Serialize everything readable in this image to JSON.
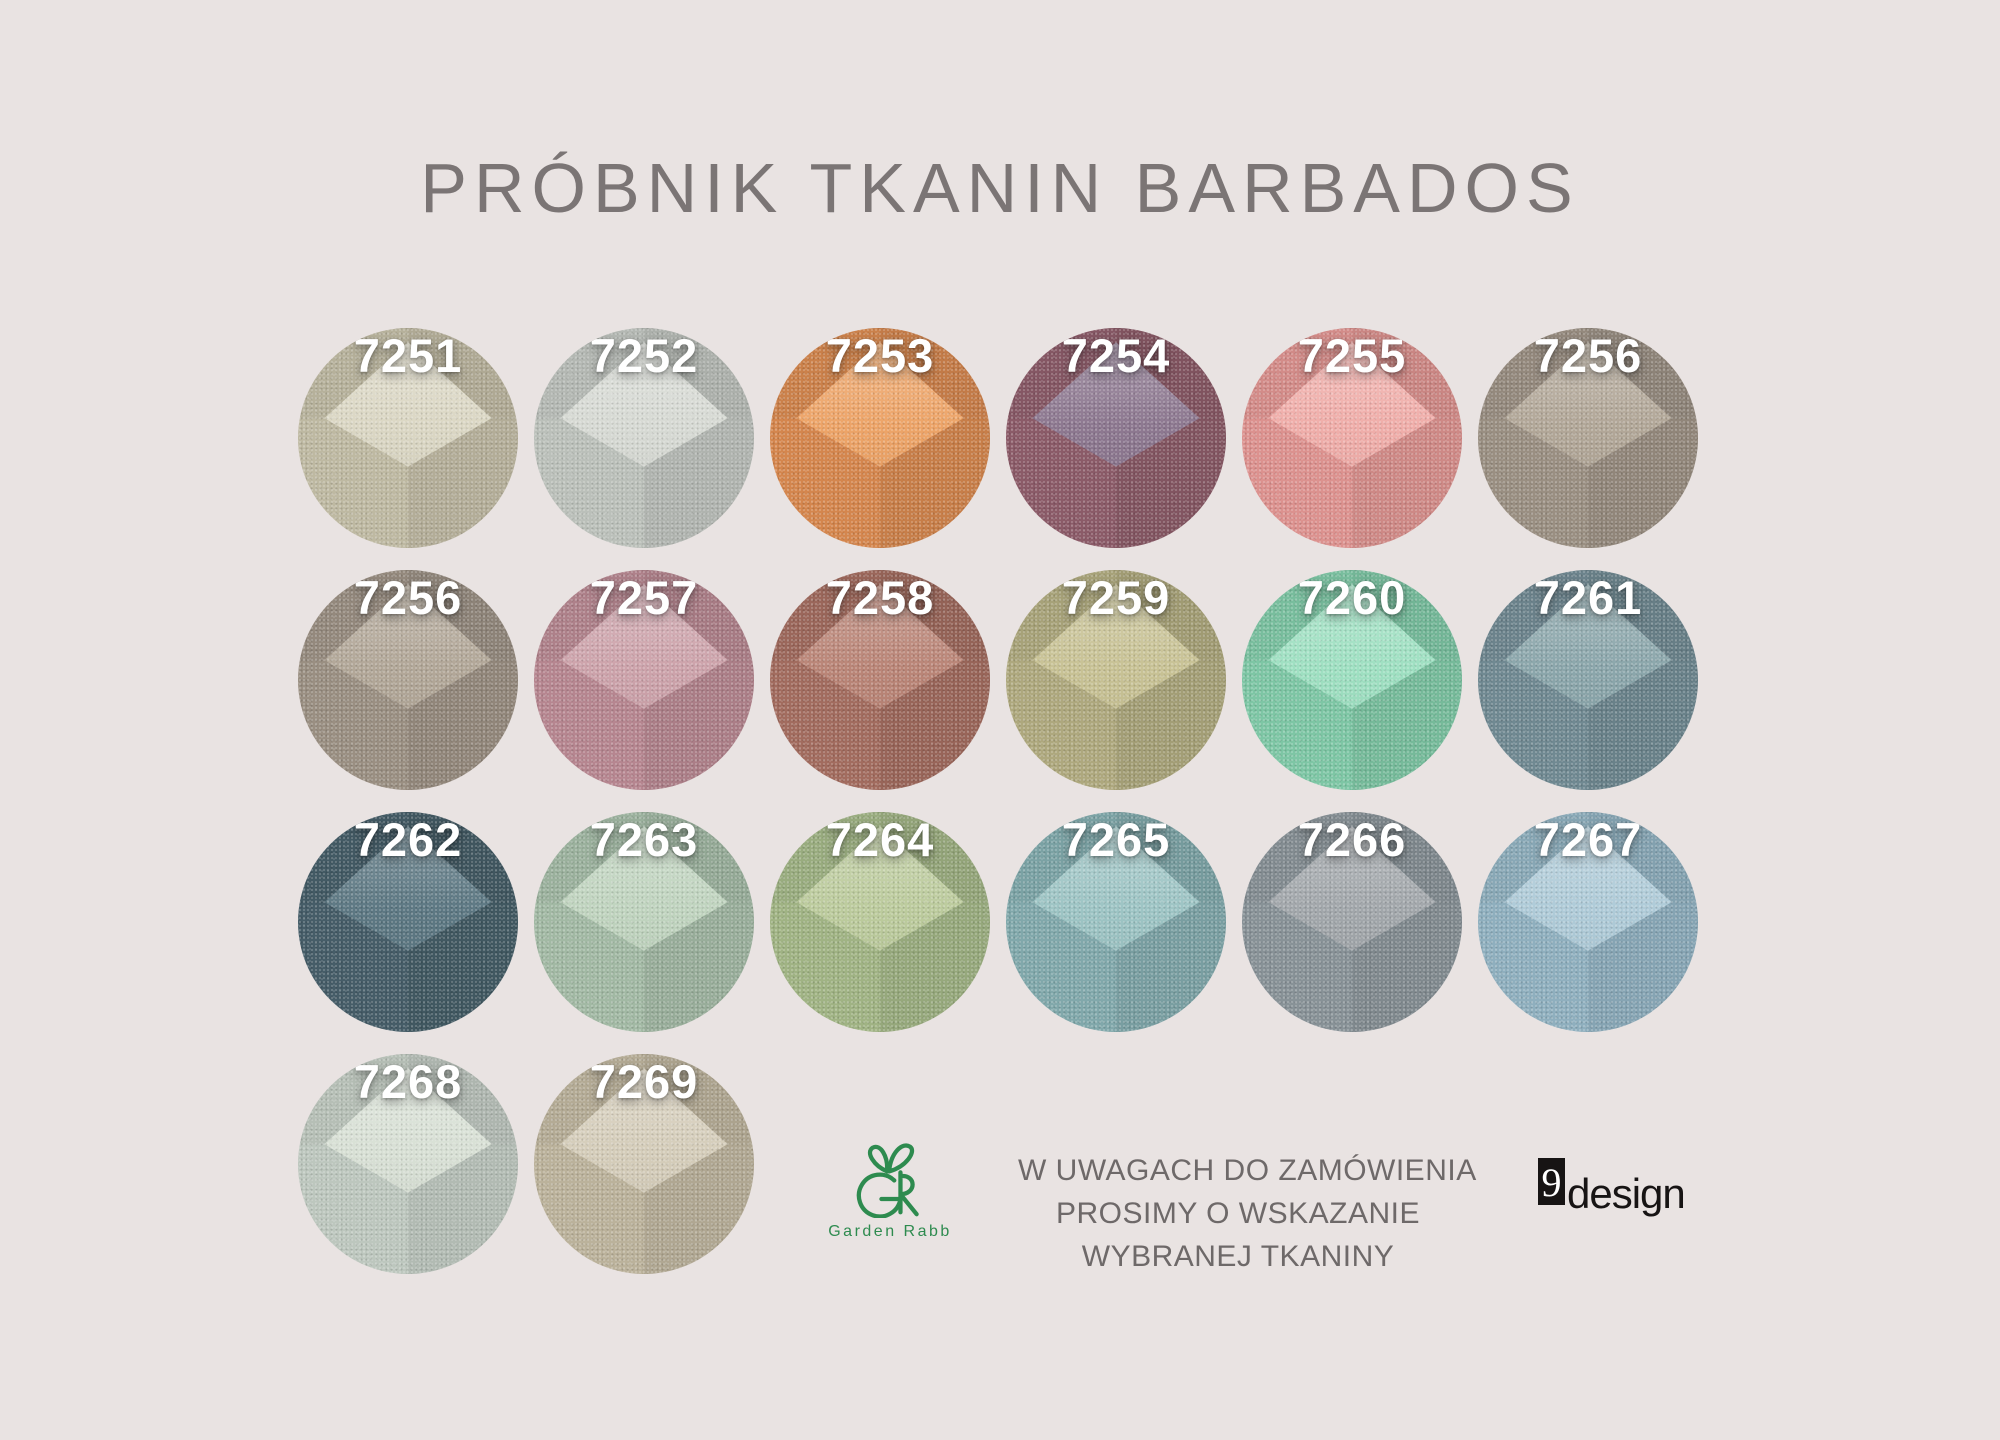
{
  "title": "PRÓBNIK TKANIN BARBADOS",
  "colors": {
    "background": "#e9e3e2",
    "title": "#7b7575",
    "note_text": "#6e6969",
    "garden_green": "#2e8b4f",
    "nine_black": "#171414",
    "swatch_label": "#ffffff"
  },
  "swatch_rows": [
    [
      {
        "label": "7251",
        "top": "#dbd7c4",
        "side": "#c9c3ab"
      },
      {
        "label": "7252",
        "top": "#d7dad4",
        "side": "#c6cbc5"
      },
      {
        "label": "7253",
        "top": "#eda468",
        "side": "#e08e53"
      },
      {
        "label": "7254",
        "top": "#8d7890",
        "side": "#93606e"
      },
      {
        "label": "7255",
        "top": "#f0aeaa",
        "side": "#e89a97"
      },
      {
        "label": "7256",
        "top": "#b2a798",
        "side": "#a3978a"
      }
    ],
    [
      {
        "label": "7256",
        "top": "#b2a798",
        "side": "#a3978a"
      },
      {
        "label": "7257",
        "top": "#cda3ab",
        "side": "#c08e98"
      },
      {
        "label": "7258",
        "top": "#ba8577",
        "side": "#ab7265"
      },
      {
        "label": "7259",
        "top": "#c8c295",
        "side": "#b8b285"
      },
      {
        "label": "7260",
        "top": "#9fe0c2",
        "side": "#85d1ae"
      },
      {
        "label": "7261",
        "top": "#8ba6ab",
        "side": "#77919a"
      }
    ],
    [
      {
        "label": "7262",
        "top": "#5d7883",
        "side": "#4a636e"
      },
      {
        "label": "7263",
        "top": "#c0d4bf",
        "side": "#abc3ad"
      },
      {
        "label": "7264",
        "top": "#bccb9d",
        "side": "#a9bd8c"
      },
      {
        "label": "7265",
        "top": "#9dc4c4",
        "side": "#88b2b5"
      },
      {
        "label": "7266",
        "top": "#a2a7ab",
        "side": "#909aa0"
      },
      {
        "label": "7267",
        "top": "#afcbd8",
        "side": "#97b9c9"
      }
    ],
    [
      {
        "label": "7268",
        "top": "#d8e0d5",
        "side": "#c8d2c9"
      },
      {
        "label": "7269",
        "top": "#d5cdba",
        "side": "#c6bca4"
      }
    ]
  ],
  "footer": {
    "garden_rabb": {
      "name": "Garden Rabb"
    },
    "note_lines": [
      "W UWAGACH DO ZAMÓWIENIA",
      "PROSIMY O WSKAZANIE",
      "WYBRANEJ TKANINY"
    ],
    "ninedesign": {
      "prefix": "9",
      "suffix": "design"
    }
  }
}
